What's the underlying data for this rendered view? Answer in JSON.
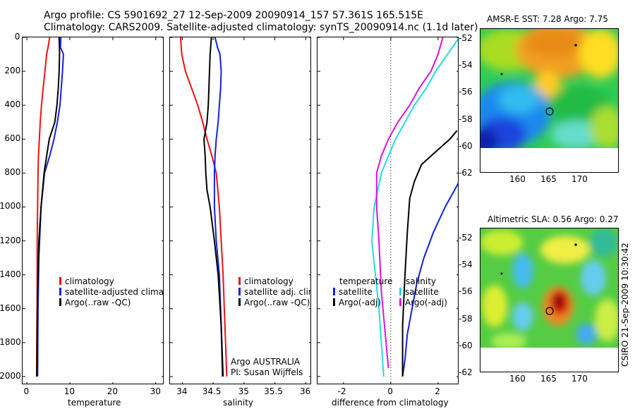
{
  "header": {
    "line1": "Argo profile: CS 5901692_27 12-Sep-2009 20090914_157 57.361S 165.515E",
    "line2": "Climatology: CARS2009. Satellite-adjusted climatology: synTS_20090914.nc (1.1d later)"
  },
  "chart_data": [
    {
      "type": "line",
      "xlabel": "temperature",
      "ylim": [
        2050,
        0
      ],
      "xlim": [
        -1,
        32
      ],
      "yticks": [
        "0",
        "200",
        "400",
        "600",
        "800",
        "1000",
        "1200",
        "1400",
        "1600",
        "1800",
        "2000"
      ],
      "xticks": [
        "0",
        "10",
        "20",
        "30"
      ],
      "legend": [
        "climatology",
        "satellite-adjusted climatolo",
        "Argo(..raw -QC)"
      ],
      "series": [
        {
          "name": "climatology",
          "color": "#ee1111",
          "x": [
            5.3,
            5.0,
            4.6,
            4.2,
            3.8,
            3.4,
            3.1,
            2.9,
            2.7,
            2.6,
            2.5,
            2.4,
            2.4,
            2.3,
            2.3
          ],
          "y": [
            0,
            50,
            100,
            200,
            300,
            400,
            500,
            600,
            700,
            800,
            1000,
            1200,
            1500,
            1800,
            2000
          ]
        },
        {
          "name": "satellite-adjusted climatolo",
          "color": "#1122dd",
          "x": [
            7.9,
            7.8,
            8.2,
            8.5,
            8.3,
            8.0,
            7.7,
            7.1,
            6.3,
            5.3,
            4.1,
            3.3,
            2.8,
            2.6,
            2.5
          ],
          "y": [
            0,
            60,
            80,
            100,
            200,
            300,
            400,
            500,
            600,
            700,
            800,
            1000,
            1300,
            1600,
            2000
          ]
        },
        {
          "name": "Argo(..raw -QC)",
          "color": "#000000",
          "x": [
            7.5,
            7.6,
            7.6,
            7.5,
            7.3,
            7.0,
            6.5,
            5.2,
            4.6,
            4.0,
            3.3,
            2.8,
            2.5,
            2.3
          ],
          "y": [
            0,
            80,
            100,
            200,
            300,
            400,
            500,
            600,
            700,
            800,
            1000,
            1200,
            1500,
            2000
          ]
        }
      ]
    },
    {
      "type": "line",
      "xlabel": "salinity",
      "ylim": [
        2050,
        0
      ],
      "xlim": [
        33.8,
        36.1
      ],
      "xticks": [
        "34",
        "34.5",
        "35",
        "35.5",
        "36"
      ],
      "legend": [
        "climatology",
        "satellite adj. clim.",
        "Argo(..raw -QC)"
      ],
      "annotation": [
        "Argo AUSTRALIA",
        "PI: Susan Wijffels"
      ],
      "series": [
        {
          "name": "climatology",
          "color": "#ee1111",
          "x": [
            33.97,
            33.99,
            34.05,
            34.15,
            34.25,
            34.33,
            34.4,
            34.48,
            34.55,
            34.6,
            34.63,
            34.66,
            34.68,
            34.7,
            34.72
          ],
          "y": [
            0,
            100,
            200,
            300,
            400,
            500,
            600,
            700,
            800,
            1000,
            1200,
            1400,
            1600,
            1800,
            2000
          ]
        },
        {
          "name": "satellite adj. clim.",
          "color": "#1122dd",
          "x": [
            34.53,
            34.57,
            34.61,
            34.63,
            34.62,
            34.6,
            34.58,
            34.55,
            34.53,
            34.52,
            34.52,
            34.55,
            34.6,
            34.63,
            34.65
          ],
          "y": [
            0,
            60,
            100,
            200,
            300,
            400,
            500,
            600,
            700,
            800,
            1000,
            1200,
            1400,
            1700,
            2000
          ]
        },
        {
          "name": "Argo(..raw -QC)",
          "color": "#000000",
          "x": [
            34.47,
            34.45,
            34.44,
            34.43,
            34.42,
            34.4,
            34.35,
            34.37,
            34.38,
            34.4,
            34.45,
            34.52,
            34.58,
            34.63,
            34.66
          ],
          "y": [
            0,
            100,
            200,
            300,
            400,
            500,
            600,
            700,
            800,
            900,
            1000,
            1200,
            1400,
            1700,
            2000
          ]
        }
      ]
    },
    {
      "type": "line",
      "xlabel": "difference from climatology",
      "ylim": [
        2050,
        0
      ],
      "xlim": [
        -3.1,
        2.9
      ],
      "xticks": [
        "-2",
        "0",
        "2"
      ],
      "legend": [
        "temperature",
        "satellite",
        "Argo(-adj)",
        "salinity",
        "satellite",
        "Argo(-adj)"
      ],
      "series": [
        {
          "name": "temperature satellite",
          "color": "#1122dd",
          "x": [
            3.5,
            2.9,
            2.3,
            1.8,
            1.4,
            1.1,
            0.9,
            0.7,
            0.6,
            0.5
          ],
          "y": [
            700,
            850,
            1000,
            1150,
            1300,
            1450,
            1600,
            1750,
            1900,
            2000
          ]
        },
        {
          "name": "temperature Argo(-adj)",
          "color": "#000000",
          "x": [
            2.8,
            2.5,
            2.1,
            1.7,
            1.3,
            1.0,
            0.8,
            0.7,
            0.6,
            0.5,
            0.5
          ],
          "y": [
            550,
            600,
            650,
            700,
            750,
            850,
            950,
            1150,
            1400,
            1700,
            2000
          ]
        },
        {
          "name": "salinity satellite",
          "color": "#22dddd",
          "x": [
            2.9,
            2.6,
            2.3,
            1.9,
            1.5,
            1.0,
            0.6,
            0.2,
            -0.1,
            -0.4,
            -0.7,
            -0.8,
            -0.5,
            -0.4,
            -0.3
          ],
          "y": [
            0,
            60,
            120,
            200,
            300,
            400,
            500,
            600,
            700,
            800,
            1000,
            1200,
            1600,
            1800,
            2000
          ]
        },
        {
          "name": "salinity Argo(-adj)",
          "color": "#dd11dd",
          "x": [
            2.2,
            2.0,
            1.7,
            1.2,
            0.8,
            0.3,
            -0.1,
            -0.4,
            -0.6,
            -0.6,
            -0.5,
            -0.4,
            -0.2,
            -0.1
          ],
          "y": [
            0,
            100,
            200,
            300,
            400,
            500,
            600,
            700,
            800,
            1000,
            1200,
            1500,
            1800,
            1950
          ]
        }
      ]
    }
  ],
  "maps": [
    {
      "title": "AMSR-E SST: 7.28 Argo: 7.75",
      "yticks": [
        "-52",
        "-54",
        "-56",
        "-58",
        "-60",
        "-62"
      ],
      "xticks": [
        "160",
        "165",
        "170"
      ]
    },
    {
      "title": "Altimetric SLA: 0.56 Argo: 0.27",
      "yticks": [
        "-52",
        "-54",
        "-56",
        "-58",
        "-60",
        "-62"
      ],
      "xticks": [
        "160",
        "165",
        "170"
      ]
    }
  ],
  "footer": {
    "stamp": "CSIRO 21-Sep-2009 10:30:42"
  }
}
